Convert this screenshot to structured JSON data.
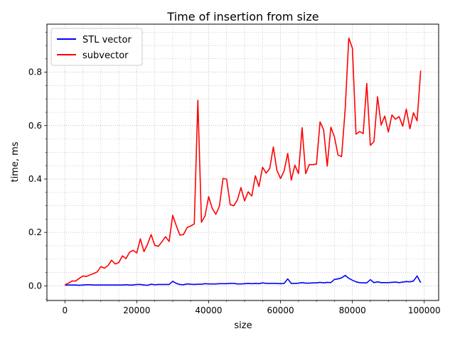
{
  "chart_data": {
    "type": "line",
    "title": "Time of insertion from size",
    "xlabel": "size",
    "ylabel": "time, ms",
    "xlim": [
      -5000,
      104000
    ],
    "ylim": [
      -0.055,
      0.98
    ],
    "xticks": [
      0,
      20000,
      40000,
      60000,
      80000,
      100000
    ],
    "xtick_labels": [
      "0",
      "20000",
      "40000",
      "60000",
      "80000",
      "100000"
    ],
    "yticks": [
      0.0,
      0.2,
      0.4,
      0.6,
      0.8
    ],
    "ytick_labels": [
      "0.0",
      "0.2",
      "0.4",
      "0.6",
      "0.8"
    ],
    "grid": true,
    "minor_grid": true,
    "legend_position": "upper-left",
    "x": [
      0,
      1000,
      2000,
      3000,
      4000,
      5000,
      6000,
      7000,
      8000,
      9000,
      10000,
      11000,
      12000,
      13000,
      14000,
      15000,
      16000,
      17000,
      18000,
      19000,
      20000,
      21000,
      22000,
      23000,
      24000,
      25000,
      26000,
      27000,
      28000,
      29000,
      30000,
      31000,
      32000,
      33000,
      34000,
      35000,
      36000,
      37000,
      38000,
      39000,
      40000,
      41000,
      42000,
      43000,
      44000,
      45000,
      46000,
      47000,
      48000,
      49000,
      50000,
      51000,
      52000,
      53000,
      54000,
      55000,
      56000,
      57000,
      58000,
      59000,
      60000,
      61000,
      62000,
      63000,
      64000,
      65000,
      66000,
      67000,
      68000,
      69000,
      70000,
      71000,
      72000,
      73000,
      74000,
      75000,
      76000,
      77000,
      78000,
      79000,
      80000,
      81000,
      82000,
      83000,
      84000,
      85000,
      86000,
      87000,
      88000,
      89000,
      90000,
      91000,
      92000,
      93000,
      94000,
      95000,
      96000,
      97000,
      98000,
      99000
    ],
    "series": [
      {
        "name": "STL vector",
        "color": "#0000ff",
        "values": [
          0.003,
          0.003,
          0.003,
          0.003,
          0.002,
          0.003,
          0.004,
          0.004,
          0.003,
          0.003,
          0.003,
          0.003,
          0.003,
          0.003,
          0.003,
          0.003,
          0.003,
          0.004,
          0.003,
          0.003,
          0.005,
          0.005,
          0.003,
          0.002,
          0.006,
          0.004,
          0.005,
          0.005,
          0.005,
          0.005,
          0.017,
          0.009,
          0.005,
          0.004,
          0.007,
          0.006,
          0.005,
          0.006,
          0.006,
          0.008,
          0.007,
          0.007,
          0.007,
          0.008,
          0.008,
          0.008,
          0.009,
          0.009,
          0.007,
          0.007,
          0.008,
          0.009,
          0.008,
          0.009,
          0.008,
          0.011,
          0.009,
          0.009,
          0.009,
          0.009,
          0.008,
          0.009,
          0.026,
          0.009,
          0.009,
          0.01,
          0.012,
          0.01,
          0.01,
          0.011,
          0.011,
          0.013,
          0.011,
          0.013,
          0.012,
          0.024,
          0.026,
          0.03,
          0.039,
          0.028,
          0.021,
          0.015,
          0.012,
          0.011,
          0.011,
          0.023,
          0.012,
          0.015,
          0.012,
          0.012,
          0.012,
          0.013,
          0.014,
          0.012,
          0.014,
          0.016,
          0.015,
          0.018,
          0.037,
          0.012
        ]
      },
      {
        "name": "subvector",
        "color": "#ff0000",
        "values": [
          0.004,
          0.01,
          0.018,
          0.018,
          0.028,
          0.037,
          0.035,
          0.041,
          0.046,
          0.052,
          0.072,
          0.066,
          0.076,
          0.096,
          0.082,
          0.087,
          0.112,
          0.102,
          0.126,
          0.133,
          0.123,
          0.176,
          0.128,
          0.156,
          0.192,
          0.152,
          0.148,
          0.165,
          0.184,
          0.166,
          0.264,
          0.225,
          0.19,
          0.192,
          0.218,
          0.224,
          0.232,
          0.695,
          0.238,
          0.262,
          0.334,
          0.29,
          0.268,
          0.298,
          0.402,
          0.4,
          0.304,
          0.3,
          0.322,
          0.368,
          0.318,
          0.352,
          0.336,
          0.412,
          0.372,
          0.444,
          0.422,
          0.44,
          0.52,
          0.432,
          0.402,
          0.43,
          0.496,
          0.396,
          0.452,
          0.42,
          0.592,
          0.42,
          0.454,
          0.454,
          0.456,
          0.614,
          0.584,
          0.448,
          0.594,
          0.558,
          0.49,
          0.484,
          0.664,
          0.928,
          0.89,
          0.568,
          0.578,
          0.57,
          0.758,
          0.526,
          0.54,
          0.708,
          0.602,
          0.636,
          0.576,
          0.64,
          0.624,
          0.634,
          0.598,
          0.662,
          0.588,
          0.648,
          0.618,
          0.806
        ]
      }
    ]
  }
}
